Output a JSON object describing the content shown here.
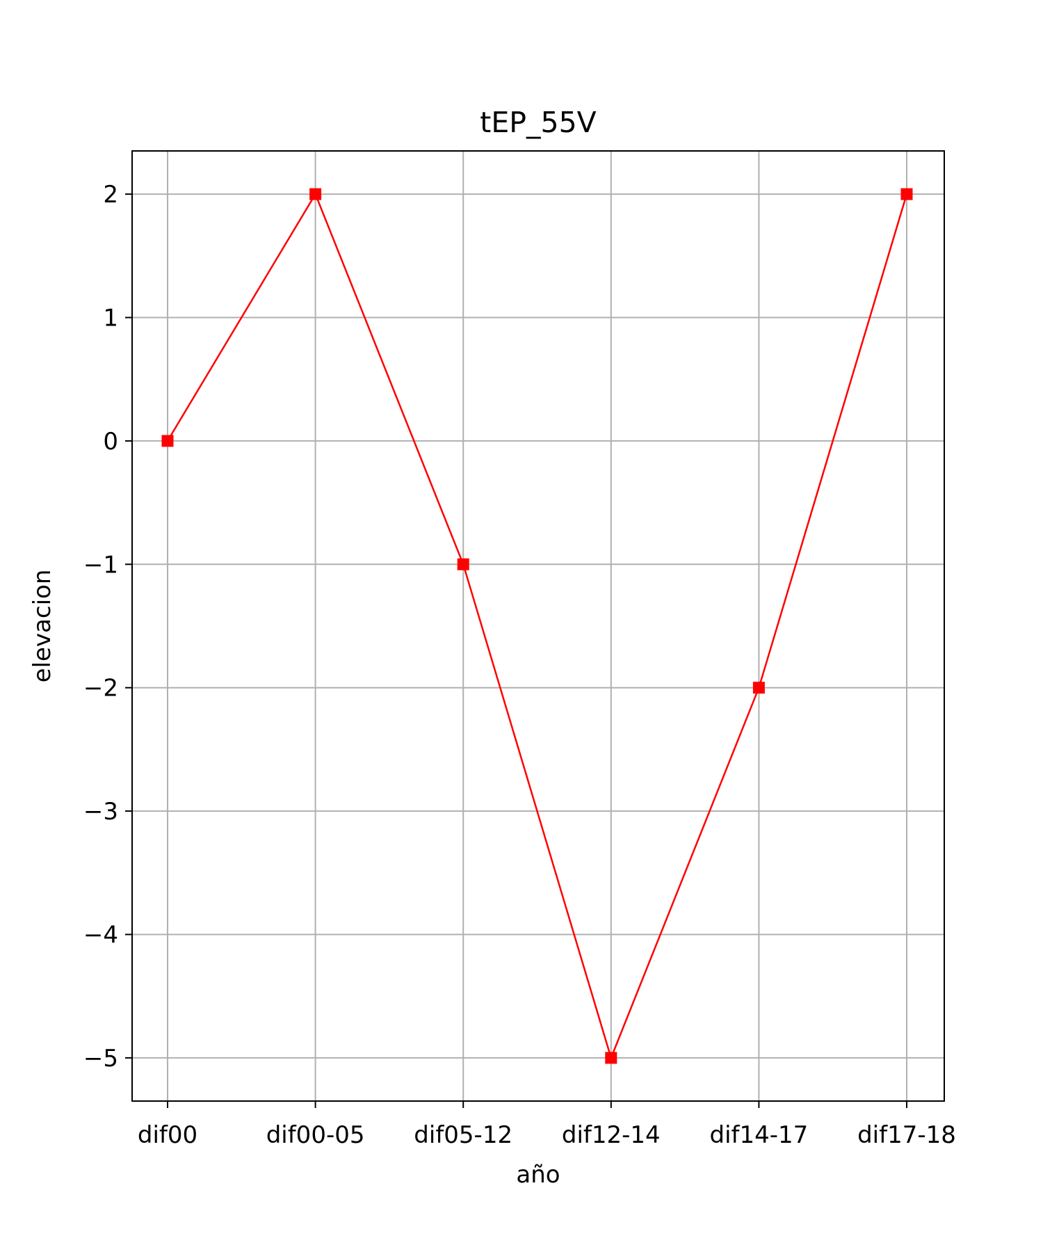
{
  "chart_data": {
    "type": "line",
    "title": "tEP_55V",
    "xlabel": "año",
    "ylabel": "elevacion",
    "categories": [
      "dif00",
      "dif00-05",
      "dif05-12",
      "dif12-14",
      "dif14-17",
      "dif17-18"
    ],
    "series": [
      {
        "values": [
          0,
          2,
          -1,
          -5,
          -2,
          2
        ],
        "color": "#ff0000",
        "marker": "square"
      }
    ],
    "yticks": [
      2,
      1,
      0,
      -1,
      -2,
      -3,
      -4,
      -5
    ],
    "ytick_labels": [
      "2",
      "1",
      "0",
      "−1",
      "−2",
      "−3",
      "−4",
      "−5"
    ],
    "ylim": [
      -5.35,
      2.35
    ],
    "grid": true,
    "grid_color": "#b0b0b0",
    "axis_color": "#000000",
    "legend": "none"
  }
}
